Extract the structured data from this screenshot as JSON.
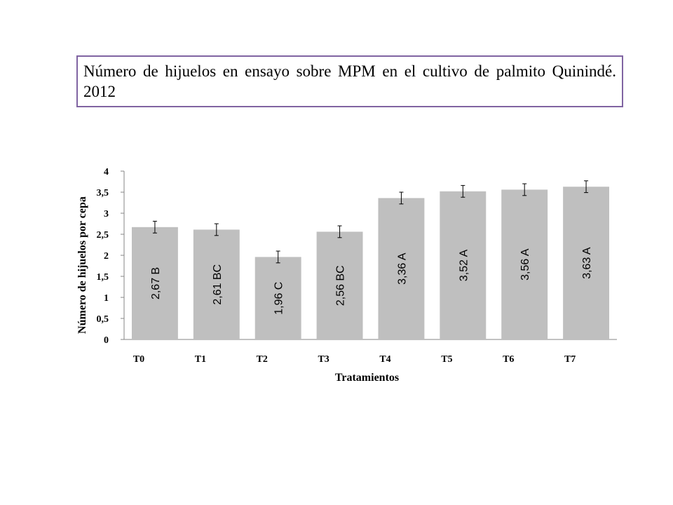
{
  "title": "Número de hijuelos en ensayo sobre MPM en el cultivo de palmito Quinindé. 2012",
  "chart_data": {
    "type": "bar",
    "categories": [
      "T0",
      "T1",
      "T2",
      "T3",
      "T4",
      "T5",
      "T6",
      "T7"
    ],
    "values": [
      2.67,
      2.61,
      1.96,
      2.56,
      3.36,
      3.52,
      3.56,
      3.63
    ],
    "error": [
      0.14,
      0.14,
      0.14,
      0.14,
      0.14,
      0.14,
      0.14,
      0.14
    ],
    "data_labels": [
      "2,67 B",
      "2,61 BC",
      "1,96 C",
      "2,56 BC",
      "3,36 A",
      "3,52 A",
      "3,56 A",
      "3,63 A"
    ],
    "xlabel": "Tratamientos",
    "ylabel": "Número de hijuelos por cepa",
    "ylim": [
      0,
      4
    ],
    "yticks": [
      0,
      0.5,
      1,
      1.5,
      2,
      2.5,
      3,
      3.5,
      4
    ],
    "ytick_labels": [
      "0",
      "0,5",
      "1",
      "1,5",
      "2",
      "2,5",
      "3",
      "3,5",
      "4"
    ],
    "bar_color": "#bfbfbf",
    "grid": false,
    "legend": "none"
  }
}
